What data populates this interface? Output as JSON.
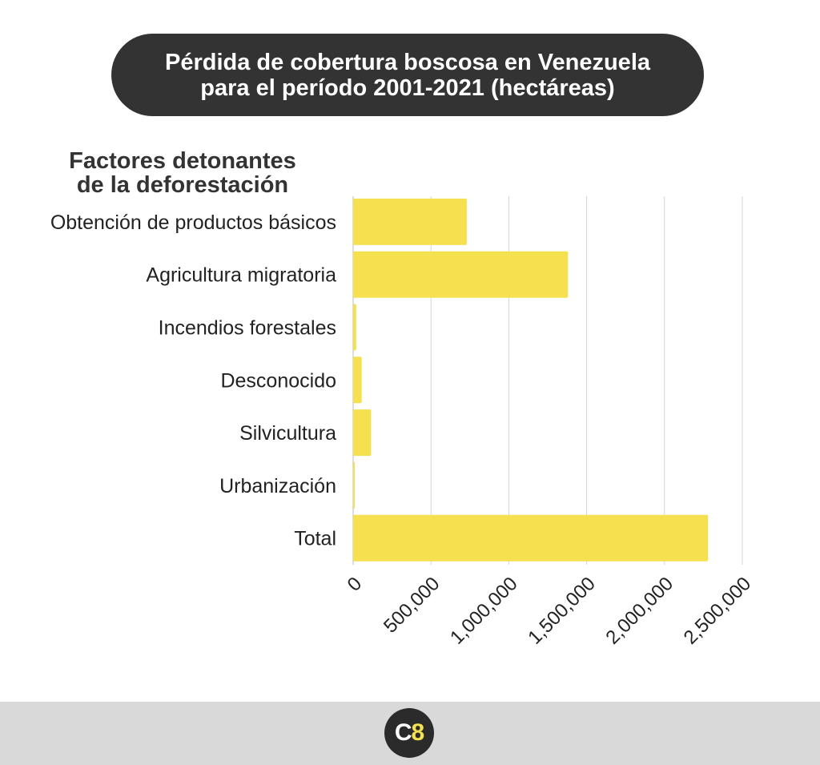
{
  "chart_data": {
    "type": "bar",
    "orientation": "horizontal",
    "title_line1": "Pérdida de cobertura boscosa en Venezuela",
    "title_line2": "para el período 2001-2021 (hectáreas)",
    "ylabel_line1": "Factores detonantes",
    "ylabel_line2": "de la deforestación",
    "categories": [
      "Obtención de productos básicos",
      "Agricultura migratoria",
      "Incendios forestales",
      "Desconocido",
      "Silvicultura",
      "Urbanización",
      "Total"
    ],
    "values": [
      730000,
      1380000,
      20000,
      55000,
      115000,
      5000,
      2280000
    ],
    "xlim": [
      0,
      2500000
    ],
    "xticks": [
      0,
      500000,
      1000000,
      1500000,
      2000000,
      2500000
    ],
    "xtick_labels": [
      "0",
      "500,000",
      "1,000,000",
      "1,500,000",
      "2,000,000",
      "2,500,000"
    ],
    "grid": true,
    "bar_color": "#f5e050"
  },
  "footer": {
    "logo_c": "C",
    "logo_8": "8"
  }
}
